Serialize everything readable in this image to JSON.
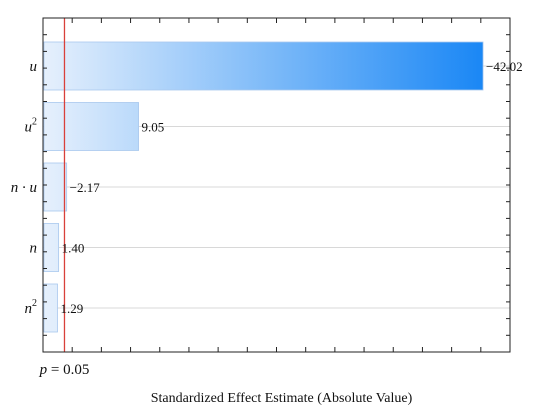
{
  "chart_data": {
    "type": "bar",
    "orientation": "horizontal",
    "categories": [
      "u",
      "u2",
      "n · u",
      "n",
      "n2"
    ],
    "category_labels": [
      {
        "base": "u",
        "sup": ""
      },
      {
        "base": "u",
        "sup": "2"
      },
      {
        "base": "n · u",
        "sup": ""
      },
      {
        "base": "n",
        "sup": ""
      },
      {
        "base": "n",
        "sup": "2"
      }
    ],
    "values": [
      42.02,
      9.05,
      2.17,
      1.4,
      1.29
    ],
    "value_labels": [
      "−42.02",
      "9.05",
      "−2.17",
      "1.40",
      "1.29"
    ],
    "xlim": [
      0,
      44.6
    ],
    "reference_line": {
      "value": 1.96,
      "label_var": "p",
      "label_rest": " = 0.05",
      "color": "#d9403a"
    },
    "xlabel": "Standardized Effect Estimate (Absolute Value)",
    "ylabel": "",
    "grid": true,
    "bar_colors": [
      "#e6f0fc",
      "#1a87f5"
    ]
  }
}
